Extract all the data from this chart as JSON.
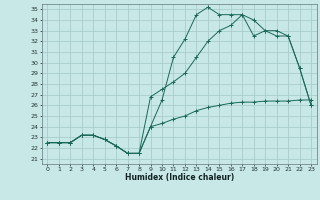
{
  "xlabel": "Humidex (Indice chaleur)",
  "bg_color": "#c8e8e8",
  "grid_color": "#a8cccc",
  "line_color": "#1a6858",
  "xlim": [
    -0.5,
    23.5
  ],
  "ylim": [
    20.5,
    35.5
  ],
  "xticks": [
    0,
    1,
    2,
    3,
    4,
    5,
    6,
    7,
    8,
    9,
    10,
    11,
    12,
    13,
    14,
    15,
    16,
    17,
    18,
    19,
    20,
    21,
    22,
    23
  ],
  "yticks": [
    21,
    22,
    23,
    24,
    25,
    26,
    27,
    28,
    29,
    30,
    31,
    32,
    33,
    34,
    35
  ],
  "line1_x": [
    0,
    1,
    2,
    3,
    4,
    5,
    6,
    7,
    8,
    9,
    10,
    11,
    12,
    13,
    14,
    15,
    16,
    17,
    18,
    19,
    20,
    21,
    22,
    23
  ],
  "line1_y": [
    22.5,
    22.5,
    22.5,
    23.2,
    23.2,
    22.8,
    22.2,
    21.5,
    21.5,
    24.0,
    26.5,
    30.5,
    32.2,
    34.5,
    35.2,
    34.5,
    34.5,
    34.5,
    34.0,
    33.0,
    32.5,
    32.5,
    29.5,
    26.0
  ],
  "line2_x": [
    0,
    1,
    2,
    3,
    4,
    5,
    6,
    7,
    8,
    9,
    10,
    11,
    12,
    13,
    14,
    15,
    16,
    17,
    18,
    19,
    20,
    21,
    22,
    23
  ],
  "line2_y": [
    22.5,
    22.5,
    22.5,
    23.2,
    23.2,
    22.8,
    22.2,
    21.5,
    21.5,
    26.8,
    27.5,
    28.2,
    29.0,
    30.5,
    32.0,
    33.0,
    33.5,
    34.5,
    32.5,
    33.0,
    33.0,
    32.5,
    29.5,
    26.0
  ],
  "line3_x": [
    0,
    1,
    2,
    3,
    4,
    5,
    6,
    7,
    8,
    9,
    10,
    11,
    12,
    13,
    14,
    15,
    16,
    17,
    18,
    19,
    20,
    21,
    22,
    23
  ],
  "line3_y": [
    22.5,
    22.5,
    22.5,
    23.2,
    23.2,
    22.8,
    22.2,
    21.5,
    21.5,
    24.0,
    24.3,
    24.7,
    25.0,
    25.5,
    25.8,
    26.0,
    26.2,
    26.3,
    26.3,
    26.4,
    26.4,
    26.4,
    26.5,
    26.5
  ]
}
